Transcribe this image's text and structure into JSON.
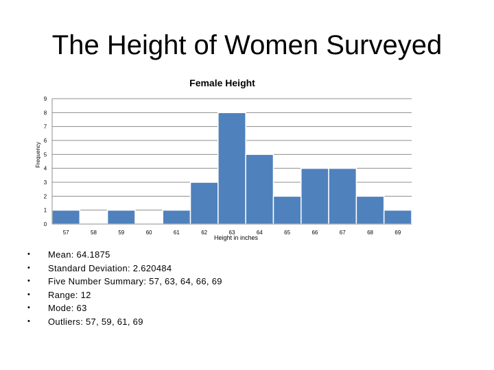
{
  "slide": {
    "title": "The Height of Women Surveyed"
  },
  "chart_data": {
    "type": "bar",
    "title": "Female Height",
    "xlabel": "Height in inches",
    "ylabel": "Frequency",
    "categories": [
      "57",
      "58",
      "59",
      "60",
      "61",
      "62",
      "63",
      "64",
      "65",
      "66",
      "67",
      "68",
      "69"
    ],
    "values": [
      1,
      0,
      1,
      0,
      1,
      3,
      8,
      5,
      2,
      4,
      4,
      2,
      1
    ],
    "ylim": [
      0,
      9
    ],
    "yticks": [
      "0",
      "1",
      "2",
      "3",
      "4",
      "5",
      "6",
      "7",
      "8",
      "9"
    ],
    "grid": true,
    "legend": "none",
    "bar_color": "#4f81bd"
  },
  "stats": [
    {
      "text": "Mean: 64.1875"
    },
    {
      "text": "Standard Deviation: 2.620484"
    },
    {
      "text": "Five Number Summary: 57, 63, 64, 66, 69"
    },
    {
      "text": "Range: 12"
    },
    {
      "text": "Mode: 63"
    },
    {
      "text": "Outliers: 57, 59, 61, 69"
    }
  ],
  "bullet_glyph": "•"
}
